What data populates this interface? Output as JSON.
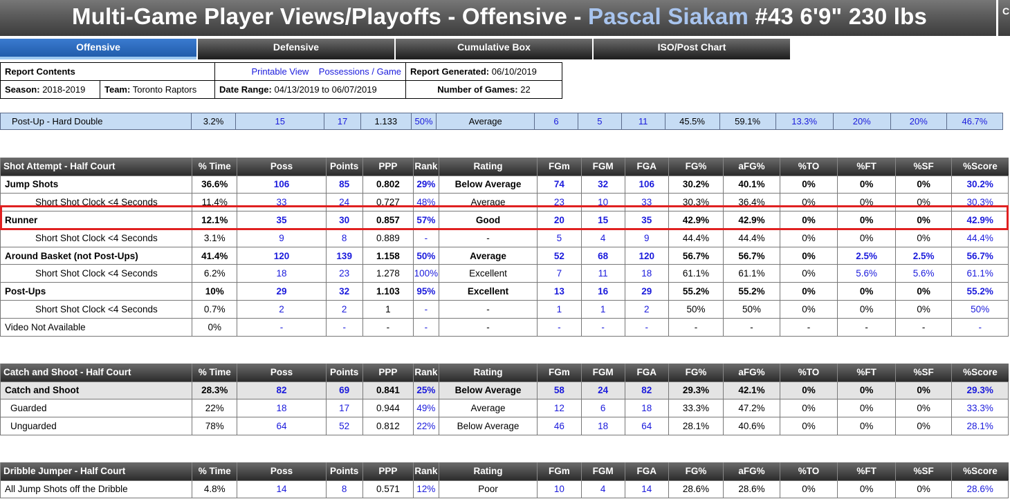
{
  "header": {
    "title_prefix": "Multi-Game Player Views/Playoffs - Offensive - ",
    "player_name": "Pascal Siakam",
    "player_details": " #43 6'9\" 230 lbs",
    "edge_glyph": "C"
  },
  "tabs": [
    {
      "label": "Offensive",
      "active": true
    },
    {
      "label": "Defensive",
      "active": false
    },
    {
      "label": "Cumulative Box",
      "active": false
    },
    {
      "label": "ISO/Post Chart",
      "active": false
    }
  ],
  "report": {
    "contents_label": "Report Contents",
    "printable_link": "Printable View",
    "possessions_link": "Possessions / Game",
    "generated_label": "Report Generated:",
    "generated_value": "06/10/2019",
    "season_label": "Season:",
    "season_value": "2018-2019",
    "team_label": "Team:",
    "team_value": "Toronto Raptors",
    "date_label": "Date Range:",
    "date_value": "04/13/2019 to 06/07/2019",
    "games_label": "Number of Games:",
    "games_value": "22"
  },
  "summary_row": [
    "Post-Up - Hard Double",
    "3.2%",
    "15",
    "17",
    "1.133",
    "50%",
    "Average",
    "6",
    "5",
    "11",
    "45.5%",
    "59.1%",
    "13.3%",
    "20%",
    "20%",
    "46.7%"
  ],
  "column_headers": [
    "% Time",
    "Poss",
    "Points",
    "PPP",
    "Rank",
    "Rating",
    "FGm",
    "FGM",
    "FGA",
    "FG%",
    "aFG%",
    "%TO",
    "%FT",
    "%SF",
    "%Score"
  ],
  "shot_attempt": {
    "title": "Shot Attempt - Half Court",
    "rows": [
      [
        "Jump Shots",
        "36.6%",
        "106",
        "85",
        "0.802",
        "29%",
        "Below Average",
        "74",
        "32",
        "106",
        "30.2%",
        "40.1%",
        "0%",
        "0%",
        "0%",
        "30.2%"
      ],
      [
        "Short Shot Clock <4 Seconds",
        "11.4%",
        "33",
        "24",
        "0.727",
        "48%",
        "Average",
        "23",
        "10",
        "33",
        "30.3%",
        "36.4%",
        "0%",
        "0%",
        "0%",
        "30.3%"
      ],
      [
        "Runner",
        "12.1%",
        "35",
        "30",
        "0.857",
        "57%",
        "Good",
        "20",
        "15",
        "35",
        "42.9%",
        "42.9%",
        "0%",
        "0%",
        "0%",
        "42.9%"
      ],
      [
        "Short Shot Clock <4 Seconds",
        "3.1%",
        "9",
        "8",
        "0.889",
        "-",
        "-",
        "5",
        "4",
        "9",
        "44.4%",
        "44.4%",
        "0%",
        "0%",
        "0%",
        "44.4%"
      ],
      [
        "Around Basket (not Post-Ups)",
        "41.4%",
        "120",
        "139",
        "1.158",
        "50%",
        "Average",
        "52",
        "68",
        "120",
        "56.7%",
        "56.7%",
        "0%",
        "2.5%",
        "2.5%",
        "56.7%"
      ],
      [
        "Short Shot Clock <4 Seconds",
        "6.2%",
        "18",
        "23",
        "1.278",
        "100%",
        "Excellent",
        "7",
        "11",
        "18",
        "61.1%",
        "61.1%",
        "0%",
        "5.6%",
        "5.6%",
        "61.1%"
      ],
      [
        "Post-Ups",
        "10%",
        "29",
        "32",
        "1.103",
        "95%",
        "Excellent",
        "13",
        "16",
        "29",
        "55.2%",
        "55.2%",
        "0%",
        "0%",
        "0%",
        "55.2%"
      ],
      [
        "Short Shot Clock <4 Seconds",
        "0.7%",
        "2",
        "2",
        "1",
        "-",
        "-",
        "1",
        "1",
        "2",
        "50%",
        "50%",
        "0%",
        "0%",
        "0%",
        "50%"
      ],
      [
        "Video Not Available",
        "0%",
        "-",
        "-",
        "-",
        "-",
        "-",
        "-",
        "-",
        "-",
        "-",
        "-",
        "-",
        "-",
        "-",
        "-"
      ]
    ]
  },
  "catch_shoot": {
    "title": "Catch and Shoot - Half Court",
    "rows": [
      [
        "Catch and Shoot",
        "28.3%",
        "82",
        "69",
        "0.841",
        "25%",
        "Below Average",
        "58",
        "24",
        "82",
        "29.3%",
        "42.1%",
        "0%",
        "0%",
        "0%",
        "29.3%"
      ],
      [
        "Guarded",
        "22%",
        "18",
        "17",
        "0.944",
        "49%",
        "Average",
        "12",
        "6",
        "18",
        "33.3%",
        "47.2%",
        "0%",
        "0%",
        "0%",
        "33.3%"
      ],
      [
        "Unguarded",
        "78%",
        "64",
        "52",
        "0.812",
        "22%",
        "Below Average",
        "46",
        "18",
        "64",
        "28.1%",
        "40.6%",
        "0%",
        "0%",
        "0%",
        "28.1%"
      ]
    ]
  },
  "dribble_jumper": {
    "title": "Dribble Jumper - Half Court",
    "rows": [
      [
        "All Jump Shots off the Dribble",
        "4.8%",
        "14",
        "8",
        "0.571",
        "12%",
        "Poor",
        "10",
        "4",
        "14",
        "28.6%",
        "28.6%",
        "0%",
        "0%",
        "0%",
        "28.6%"
      ]
    ]
  },
  "colors": {
    "link_blue": "#1a1adc",
    "highlight_red": "#e02020",
    "active_tab": "#2a6cc0"
  }
}
